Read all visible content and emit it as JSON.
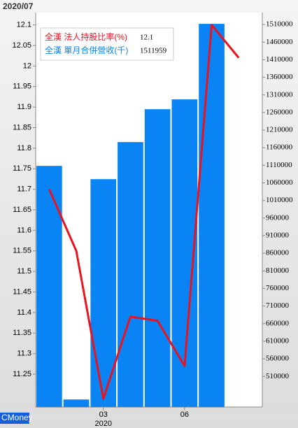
{
  "chart_data": {
    "type": "bar-line",
    "title": "2020/07",
    "watermark": "CMoney",
    "x_sublabel": "2020",
    "categories": [
      null,
      null,
      "03",
      null,
      null,
      "06",
      null,
      null
    ],
    "series": [
      {
        "name": "全漢 法人持股比率(%)",
        "type": "line",
        "axis": "y",
        "color": "#e8141e",
        "values": [
          11.7,
          11.55,
          11.19,
          11.39,
          11.38,
          11.27,
          12.1,
          12.02
        ]
      },
      {
        "name": "全漢 單月合併營收(千)",
        "type": "bar",
        "axis": "y2",
        "color": "#0a84f5",
        "values": [
          1108400,
          444400,
          1070600,
          1176000,
          1269400,
          1297300,
          1511959,
          null
        ]
      }
    ],
    "ylim": [
      11.17,
      12.13
    ],
    "yticks": [
      11.25,
      11.3,
      11.35,
      11.4,
      11.45,
      11.5,
      11.55,
      11.6,
      11.65,
      11.7,
      11.75,
      11.8,
      11.85,
      11.9,
      11.95,
      12,
      12.05,
      12.1
    ],
    "y2lim": [
      423000,
      1544000
    ],
    "y2ticks": [
      510000,
      560000,
      610000,
      660000,
      710000,
      760000,
      810000,
      860000,
      910000,
      960000,
      1010000,
      1060000,
      1110000,
      1160000,
      1210000,
      1260000,
      1310000,
      1360000,
      1410000,
      1460000,
      1510000
    ]
  }
}
